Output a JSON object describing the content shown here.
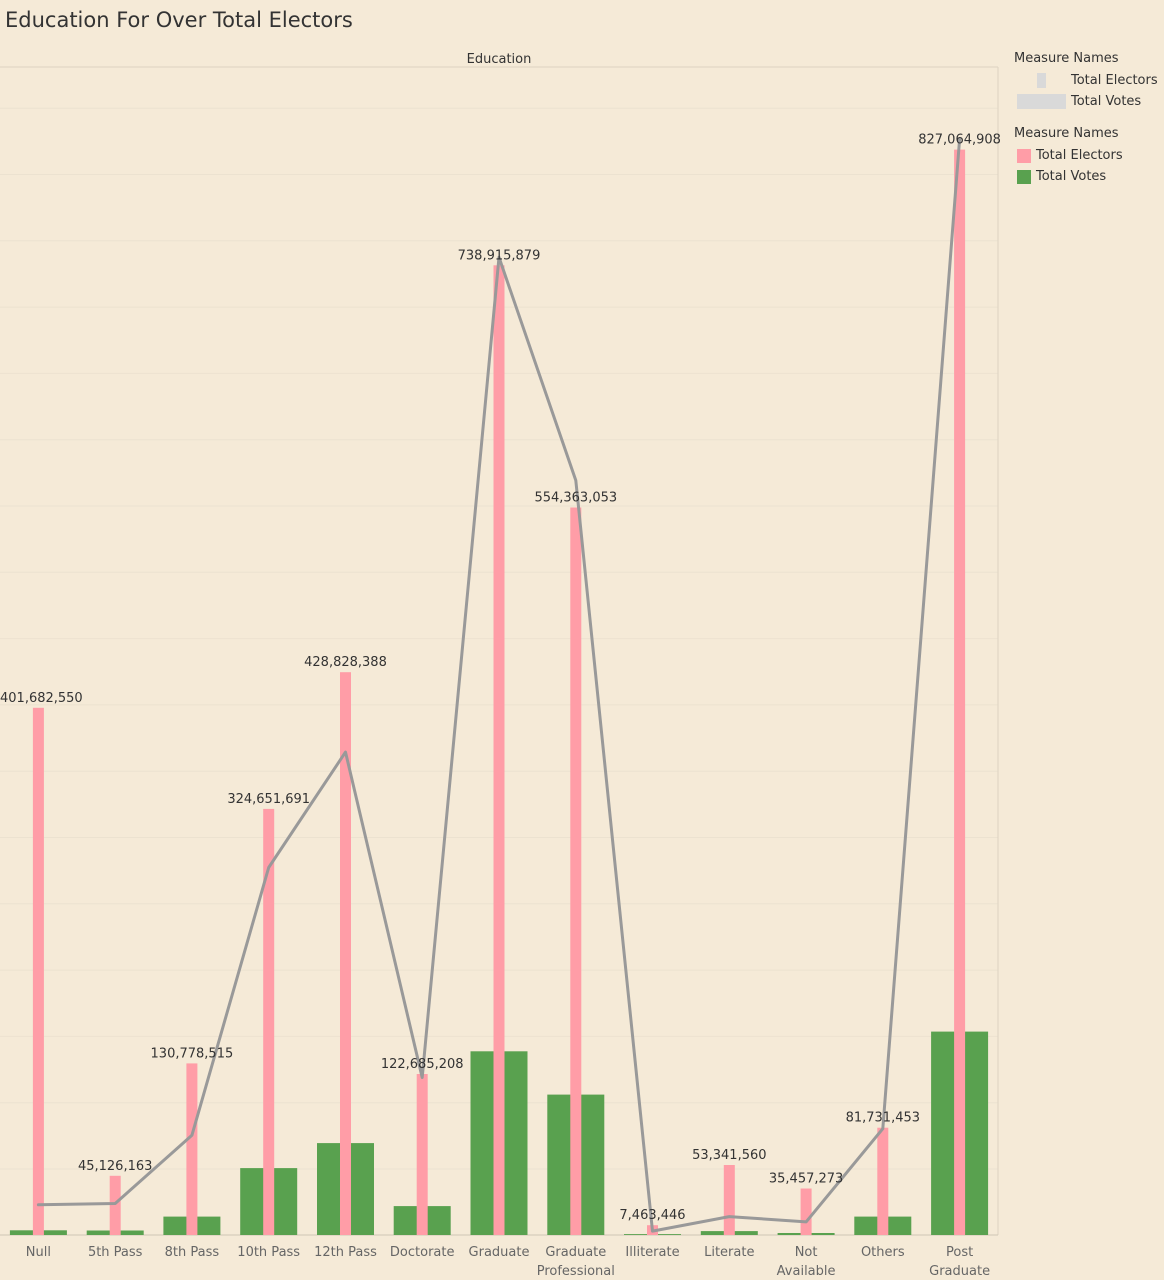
{
  "title": "Education For Over Total Electors",
  "legend_size": {
    "title": "Measure Names",
    "items": [
      {
        "label": "Total Electors"
      },
      {
        "label": "Total Votes"
      }
    ]
  },
  "legend_color": {
    "title": "Measure Names",
    "items": [
      {
        "label": "Total Electors",
        "color": "#ff9da7"
      },
      {
        "label": "Total Votes",
        "color": "#59a14f"
      }
    ]
  },
  "colors": {
    "electors": "#ff9da7",
    "votes": "#59a14f",
    "line": "#999999",
    "background": "#f5ead7"
  },
  "chart_data": {
    "type": "bar",
    "title": "Education For Over Total Electors",
    "column_header": "Education",
    "categories": [
      [
        "Null"
      ],
      [
        "5th Pass"
      ],
      [
        "8th Pass"
      ],
      [
        "10th Pass"
      ],
      [
        "12th Pass"
      ],
      [
        "Doctorate"
      ],
      [
        "Graduate"
      ],
      [
        "Graduate",
        "Professional"
      ],
      [
        "Illiterate"
      ],
      [
        "Literate"
      ],
      [
        "Not",
        "Available"
      ],
      [
        "Others"
      ],
      [
        "Post",
        "Graduate"
      ]
    ],
    "series": [
      {
        "name": "Total Electors",
        "values": [
          401682550,
          45126163,
          130778515,
          324651691,
          428828388,
          122685208,
          738915879,
          554363053,
          7463446,
          53341560,
          35457273,
          81731453,
          827064908
        ]
      },
      {
        "name": "Total Votes",
        "values": [
          3600000,
          3400000,
          14000000,
          51000000,
          70000000,
          22000000,
          140000000,
          107000000,
          700000,
          3000000,
          1500000,
          14000000,
          155000000
        ]
      }
    ],
    "data_labels": [
      "401,682,550",
      "45,126,163",
      "130,778,515",
      "324,651,691",
      "428,828,388",
      "122,685,208",
      "738,915,879",
      "554,363,053",
      "7,463,446",
      "53,341,560",
      "35,457,273",
      "81,731,453",
      "827,064,908"
    ],
    "line_values": [
      23000000,
      24000000,
      76000000,
      280000000,
      368000000,
      120000000,
      745000000,
      575000000,
      3000000,
      14000000,
      10000000,
      81000000,
      835000000
    ],
    "ylim": [
      0,
      890000000
    ],
    "grid": true,
    "legend": "right"
  }
}
